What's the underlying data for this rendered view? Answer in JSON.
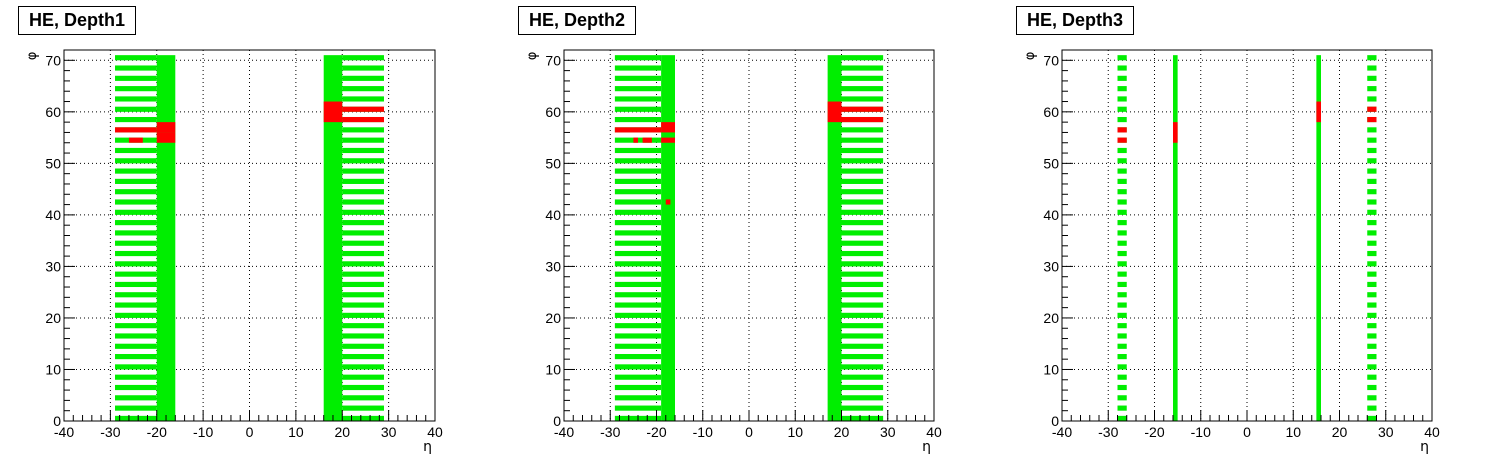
{
  "colors": {
    "good": "#00ee00",
    "bad": "#ff0000",
    "axis": "#000000",
    "grid": "#000000"
  },
  "chart_data": [
    {
      "type": "heatmap",
      "title": "HE, Depth1",
      "xlabel": "η",
      "ylabel": "φ",
      "xlim": [
        -40,
        40
      ],
      "ylim": [
        0,
        72
      ],
      "xticks": [
        "-40",
        "-30",
        "-20",
        "-10",
        "0",
        "10",
        "20",
        "30",
        "40"
      ],
      "yticks": [
        "0",
        "10",
        "20",
        "30",
        "40",
        "50",
        "60",
        "70"
      ],
      "grid": true,
      "bins": {
        "full_columns": [
          [
            -20,
            -16
          ],
          [
            16,
            20
          ]
        ],
        "stripe_columns": [
          [
            -29,
            -20
          ],
          [
            20,
            29
          ]
        ],
        "stripe_phi_step": 2,
        "bad": [
          {
            "eta": [
              -29,
              -20
            ],
            "phi": [
              56,
              57
            ]
          },
          {
            "eta": [
              -26,
              -23
            ],
            "phi": [
              54,
              55
            ]
          },
          {
            "eta": [
              -20,
              -16
            ],
            "phi": [
              56,
              58
            ]
          },
          {
            "eta": [
              -20,
              -16
            ],
            "phi": [
              54,
              56
            ]
          },
          {
            "eta": [
              16,
              20
            ],
            "phi": [
              58,
              62
            ]
          },
          {
            "eta": [
              20,
              29
            ],
            "phi": [
              60,
              61
            ]
          },
          {
            "eta": [
              20,
              29
            ],
            "phi": [
              58,
              59
            ]
          }
        ]
      }
    },
    {
      "type": "heatmap",
      "title": "HE, Depth2",
      "xlabel": "η",
      "ylabel": "φ",
      "xlim": [
        -40,
        40
      ],
      "ylim": [
        0,
        72
      ],
      "xticks": [
        "-40",
        "-30",
        "-20",
        "-10",
        "0",
        "10",
        "20",
        "30",
        "40"
      ],
      "yticks": [
        "0",
        "10",
        "20",
        "30",
        "40",
        "50",
        "60",
        "70"
      ],
      "grid": true,
      "bins": {
        "full_columns": [
          [
            -19,
            -16
          ],
          [
            17,
            20
          ]
        ],
        "stripe_columns": [
          [
            -29,
            -19
          ],
          [
            20,
            29
          ]
        ],
        "stripe_phi_step": 2,
        "bad": [
          {
            "eta": [
              -29,
              -19
            ],
            "phi": [
              56,
              57
            ]
          },
          {
            "eta": [
              -25,
              -24
            ],
            "phi": [
              54,
              55
            ]
          },
          {
            "eta": [
              -23,
              -21
            ],
            "phi": [
              54,
              55
            ]
          },
          {
            "eta": [
              -19,
              -16
            ],
            "phi": [
              56,
              58
            ]
          },
          {
            "eta": [
              -19,
              -16
            ],
            "phi": [
              54,
              55
            ]
          },
          {
            "eta": [
              -18,
              -17
            ],
            "phi": [
              42,
              43
            ]
          },
          {
            "eta": [
              17,
              20
            ],
            "phi": [
              58,
              62
            ]
          },
          {
            "eta": [
              20,
              29
            ],
            "phi": [
              60,
              61
            ]
          },
          {
            "eta": [
              20,
              29
            ],
            "phi": [
              58,
              59
            ]
          }
        ]
      }
    },
    {
      "type": "heatmap",
      "title": "HE, Depth3",
      "xlabel": "η",
      "ylabel": "φ",
      "xlim": [
        -40,
        40
      ],
      "ylim": [
        0,
        72
      ],
      "xticks": [
        "-40",
        "-30",
        "-20",
        "-10",
        "0",
        "10",
        "20",
        "30",
        "40"
      ],
      "yticks": [
        "0",
        "10",
        "20",
        "30",
        "40",
        "50",
        "60",
        "70"
      ],
      "grid": true,
      "bins": {
        "full_columns": [
          [
            -16,
            -15
          ],
          [
            15,
            16
          ]
        ],
        "stripe_columns": [
          [
            -28,
            -26
          ],
          [
            26,
            28
          ]
        ],
        "stripe_phi_step": 2,
        "bad": [
          {
            "eta": [
              -28,
              -26
            ],
            "phi": [
              56,
              57
            ]
          },
          {
            "eta": [
              -28,
              -26
            ],
            "phi": [
              54,
              55
            ]
          },
          {
            "eta": [
              -16,
              -15
            ],
            "phi": [
              54,
              58
            ]
          },
          {
            "eta": [
              15,
              16
            ],
            "phi": [
              58,
              62
            ]
          },
          {
            "eta": [
              26,
              28
            ],
            "phi": [
              60,
              61
            ]
          },
          {
            "eta": [
              26,
              28
            ],
            "phi": [
              58,
              59
            ]
          }
        ]
      }
    }
  ]
}
